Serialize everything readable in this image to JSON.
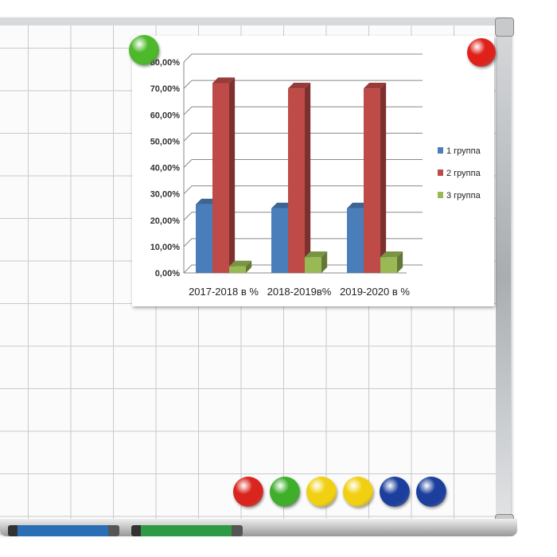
{
  "chart_data": {
    "type": "bar",
    "categories": [
      "2017-2018 в %",
      "2018-2019в%",
      "2019-2020 в %"
    ],
    "series": [
      {
        "name": "1 группа",
        "values": [
          26,
          24.5,
          24.5
        ],
        "color": "#4a7ebb"
      },
      {
        "name": "2 группа",
        "values": [
          72,
          70,
          70
        ],
        "color": "#be4b48"
      },
      {
        "name": "3 группа",
        "values": [
          2.5,
          6,
          6
        ],
        "color": "#98b954"
      }
    ],
    "yticks": [
      "0,00%",
      "10,00%",
      "20,00%",
      "30,00%",
      "40,00%",
      "50,00%",
      "60,00%",
      "70,00%",
      "80,00%"
    ],
    "ylim": [
      0,
      80
    ],
    "grid": true,
    "legend": "right",
    "style": "3d"
  },
  "magnets": {
    "colors": [
      "#d9251d",
      "#3fae2a",
      "#f1d012",
      "#f1d012",
      "#1c3e9c",
      "#1c3e9c"
    ],
    "top_left": "#4cb82a",
    "top_right": "#e0201a"
  },
  "markers": {
    "colors": [
      "#2a6fb5",
      "#2f9a45"
    ]
  }
}
